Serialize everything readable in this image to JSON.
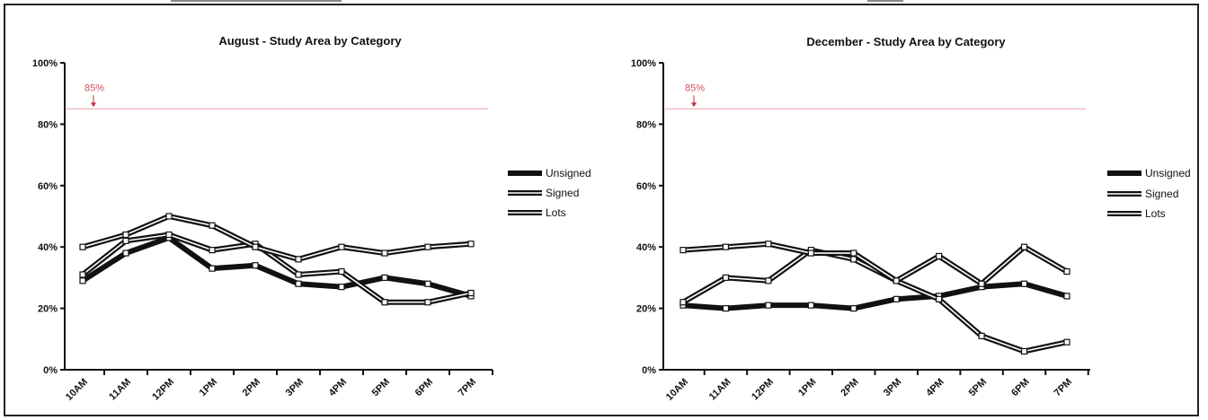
{
  "chart_data": [
    {
      "type": "line",
      "title": "August - Study Area by Category",
      "categories": [
        "10AM",
        "11AM",
        "12PM",
        "1PM",
        "2PM",
        "3PM",
        "4PM",
        "5PM",
        "6PM",
        "7PM"
      ],
      "yticks": [
        "0%",
        "20%",
        "40%",
        "60%",
        "80%",
        "100%"
      ],
      "ylim": [
        0,
        100
      ],
      "reference_line": {
        "value": 85,
        "label": "85%",
        "color": "#e8a0aa"
      },
      "legend_position": "right",
      "series": [
        {
          "name": "Unsigned",
          "style": "solid",
          "values": [
            29,
            38,
            43,
            33,
            34,
            28,
            27,
            30,
            28,
            24
          ]
        },
        {
          "name": "Signed",
          "style": "double",
          "values": [
            31,
            42,
            44,
            39,
            41,
            31,
            32,
            22,
            22,
            25
          ]
        },
        {
          "name": "Lots",
          "style": "double",
          "values": [
            40,
            44,
            50,
            47,
            40,
            36,
            40,
            38,
            40,
            41
          ]
        }
      ]
    },
    {
      "type": "line",
      "title": "December - Study Area by Category",
      "categories": [
        "10AM",
        "11AM",
        "12PM",
        "1PM",
        "2PM",
        "3PM",
        "4PM",
        "5PM",
        "6PM",
        "7PM"
      ],
      "yticks": [
        "0%",
        "20%",
        "40%",
        "60%",
        "80%",
        "100%"
      ],
      "ylim": [
        0,
        100
      ],
      "reference_line": {
        "value": 85,
        "label": "85%",
        "color": "#e8a0aa"
      },
      "legend_position": "right",
      "series": [
        {
          "name": "Unsigned",
          "style": "solid",
          "values": [
            21,
            20,
            21,
            21,
            20,
            23,
            24,
            27,
            28,
            24
          ]
        },
        {
          "name": "Signed",
          "style": "double",
          "values": [
            22,
            30,
            29,
            39,
            36,
            29,
            23,
            11,
            6,
            9
          ]
        },
        {
          "name": "Lots",
          "style": "double",
          "values": [
            39,
            40,
            41,
            38,
            38,
            29,
            37,
            28,
            40,
            32
          ]
        }
      ]
    }
  ]
}
